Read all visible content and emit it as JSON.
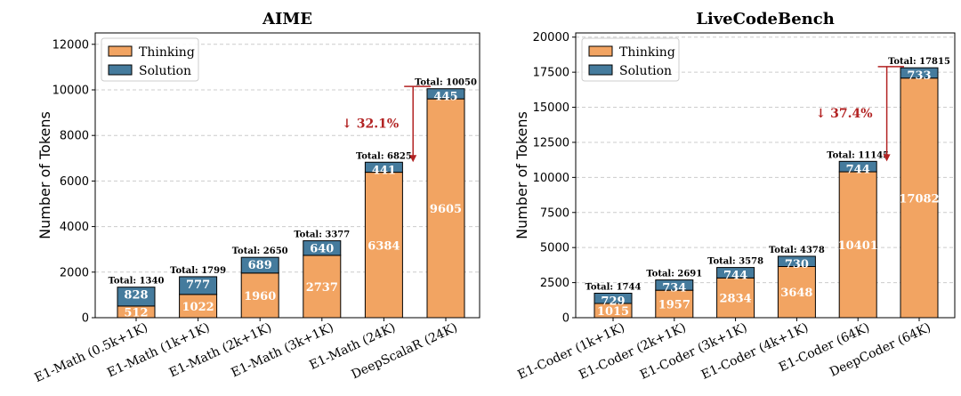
{
  "colors": {
    "thinking": "#F2A462",
    "solution": "#457B9D",
    "arrow": "#B22222",
    "grid": "#cccccc"
  },
  "chart_data": [
    {
      "type": "bar",
      "stacked": true,
      "title": "AIME",
      "ylabel": "Number of Tokens",
      "xlabel": "",
      "ylim": [
        0,
        12500
      ],
      "yticks": [
        0,
        2000,
        4000,
        6000,
        8000,
        10000,
        12000
      ],
      "ytick_labels": [
        "0",
        "2000",
        "4000",
        "6000",
        "8000",
        "10000",
        "12000"
      ],
      "grid": "y-dashed",
      "legend_position": "top-left",
      "categories": [
        "E1-Math (0.5k+1K)",
        "E1-Math (1k+1K)",
        "E1-Math (2k+1K)",
        "E1-Math (3k+1K)",
        "E1-Math (24K)",
        "DeepScalaR (24K)"
      ],
      "series": [
        {
          "name": "Thinking",
          "values": [
            512,
            1022,
            1960,
            2737,
            6384,
            9605
          ]
        },
        {
          "name": "Solution",
          "values": [
            828,
            777,
            689,
            640,
            441,
            445
          ]
        }
      ],
      "totals": [
        "Total: 1340",
        "Total: 1799",
        "Total: 2650",
        "Total: 3377",
        "Total: 6825",
        "Total: 10050"
      ],
      "annotation": {
        "text": "↓ 32.1%",
        "from_value": 10150,
        "to_value": 6825
      }
    },
    {
      "type": "bar",
      "stacked": true,
      "title": "LiveCodeBench",
      "ylabel": "Number of Tokens",
      "xlabel": "",
      "ylim": [
        0,
        20300
      ],
      "yticks": [
        0,
        2500,
        5000,
        7500,
        10000,
        12500,
        15000,
        17500,
        20000
      ],
      "ytick_labels": [
        "0",
        "2500",
        "5000",
        "7500",
        "10000",
        "12500",
        "15000",
        "17500",
        "20000"
      ],
      "grid": "y-dashed",
      "legend_position": "top-left",
      "categories": [
        "E1-Coder (1k+1K)",
        "E1-Coder (2k+1K)",
        "E1-Coder (3k+1K)",
        "E1-Coder (4k+1K)",
        "E1-Coder (64K)",
        "DeepCoder (64K)"
      ],
      "series": [
        {
          "name": "Thinking",
          "values": [
            1015,
            1957,
            2834,
            3648,
            10401,
            17082
          ]
        },
        {
          "name": "Solution",
          "values": [
            729,
            734,
            744,
            730,
            744,
            733
          ]
        }
      ],
      "totals": [
        "Total: 1744",
        "Total: 2691",
        "Total: 3578",
        "Total: 4378",
        "Total: 11145",
        "Total: 17815"
      ],
      "annotation": {
        "text": "↓ 37.4%",
        "from_value": 17900,
        "to_value": 11145
      }
    }
  ]
}
